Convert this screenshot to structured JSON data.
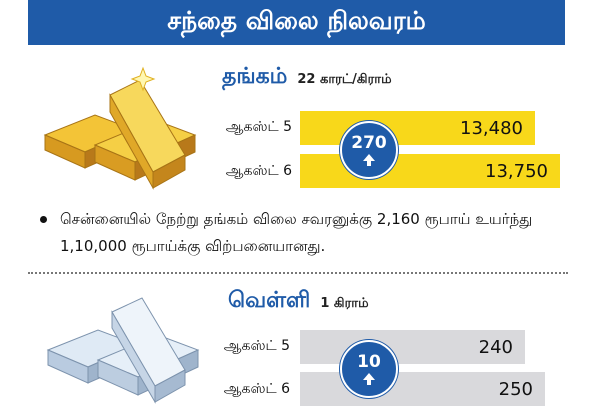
{
  "header": {
    "title": "சந்தை விலை நிலவரம்"
  },
  "gold": {
    "title": "தங்கம்",
    "unit": "22 காரட்/கிராம்",
    "rows": [
      {
        "date": "ஆகஸ்ட் 5",
        "price": "13,480"
      },
      {
        "date": "ஆகஸ்ட் 6",
        "price": "13,750"
      }
    ],
    "change": "270",
    "note": "சென்னையில் நேற்று தங்கம் விலை சவரனுக்கு 2,160 ரூபாய் உயர்ந்து 1,10,000 ரூபாய்க்கு விற்பனையானது."
  },
  "silver": {
    "title": "வெள்ளி",
    "unit": "1 கிராம்",
    "rows": [
      {
        "date": "ஆகஸ்ட் 5",
        "price": "240"
      },
      {
        "date": "ஆகஸ்ட் 6",
        "price": "250"
      }
    ],
    "change": "10"
  }
}
